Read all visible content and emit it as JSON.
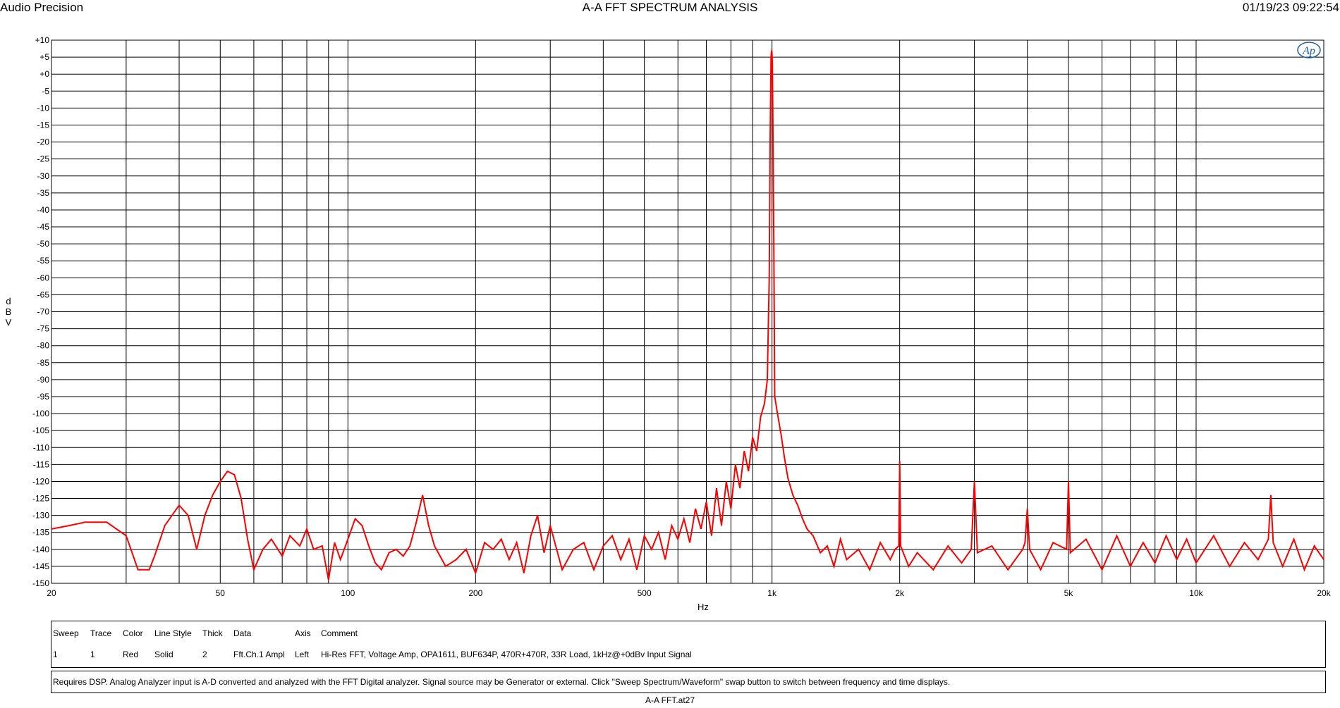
{
  "header": {
    "brand": "Audio Precision",
    "title": "A-A FFT SPECTRUM ANALYSIS",
    "datetime": "01/19/23 09:22:54"
  },
  "logo_text": "Ap",
  "chart_data": {
    "type": "line",
    "title": "A-A FFT SPECTRUM ANALYSIS",
    "xlabel": "Hz",
    "ylabel": "dBV",
    "xscale": "log",
    "xlim": [
      20,
      20000
    ],
    "ylim": [
      -150,
      10
    ],
    "grid": true,
    "x_tick_labels": [
      {
        "v": 20,
        "t": "20"
      },
      {
        "v": 50,
        "t": "50"
      },
      {
        "v": 100,
        "t": "100"
      },
      {
        "v": 200,
        "t": "200"
      },
      {
        "v": 500,
        "t": "500"
      },
      {
        "v": 1000,
        "t": "1k"
      },
      {
        "v": 2000,
        "t": "2k"
      },
      {
        "v": 5000,
        "t": "5k"
      },
      {
        "v": 10000,
        "t": "10k"
      },
      {
        "v": 20000,
        "t": "20k"
      }
    ],
    "y_tick_labels": [
      "+10",
      "+5",
      "+0",
      "-5",
      "-10",
      "-15",
      "-20",
      "-25",
      "-30",
      "-35",
      "-40",
      "-45",
      "-50",
      "-55",
      "-60",
      "-65",
      "-70",
      "-75",
      "-80",
      "-85",
      "-90",
      "-95",
      "-100",
      "-105",
      "-110",
      "-115",
      "-120",
      "-125",
      "-130",
      "-135",
      "-140",
      "-145",
      "-150"
    ],
    "series": [
      {
        "color": "#ff0000",
        "points": [
          [
            20,
            -134
          ],
          [
            22,
            -133
          ],
          [
            24,
            -132
          ],
          [
            27,
            -132
          ],
          [
            30,
            -136
          ],
          [
            32,
            -146
          ],
          [
            34,
            -146
          ],
          [
            35,
            -142
          ],
          [
            37,
            -133
          ],
          [
            40,
            -127
          ],
          [
            42,
            -130
          ],
          [
            44,
            -140
          ],
          [
            46,
            -130
          ],
          [
            48,
            -124
          ],
          [
            50,
            -120
          ],
          [
            52,
            -117
          ],
          [
            54,
            -118
          ],
          [
            56,
            -125
          ],
          [
            58,
            -137
          ],
          [
            60,
            -146
          ],
          [
            63,
            -140
          ],
          [
            66,
            -137
          ],
          [
            70,
            -142
          ],
          [
            73,
            -136
          ],
          [
            77,
            -139
          ],
          [
            80,
            -134
          ],
          [
            83,
            -140
          ],
          [
            87,
            -139
          ],
          [
            90,
            -149
          ],
          [
            93,
            -138
          ],
          [
            96,
            -143
          ],
          [
            100,
            -137
          ],
          [
            104,
            -131
          ],
          [
            108,
            -133
          ],
          [
            112,
            -139
          ],
          [
            116,
            -144
          ],
          [
            120,
            -146
          ],
          [
            125,
            -141
          ],
          [
            130,
            -140
          ],
          [
            135,
            -142
          ],
          [
            140,
            -139
          ],
          [
            145,
            -132
          ],
          [
            150,
            -124
          ],
          [
            155,
            -133
          ],
          [
            160,
            -139
          ],
          [
            170,
            -145
          ],
          [
            180,
            -143
          ],
          [
            190,
            -140
          ],
          [
            200,
            -147
          ],
          [
            210,
            -138
          ],
          [
            220,
            -140
          ],
          [
            230,
            -137
          ],
          [
            240,
            -143
          ],
          [
            250,
            -138
          ],
          [
            260,
            -147
          ],
          [
            270,
            -136
          ],
          [
            280,
            -130
          ],
          [
            290,
            -141
          ],
          [
            300,
            -133
          ],
          [
            320,
            -146
          ],
          [
            340,
            -140
          ],
          [
            360,
            -138
          ],
          [
            380,
            -146
          ],
          [
            400,
            -139
          ],
          [
            420,
            -136
          ],
          [
            440,
            -143
          ],
          [
            460,
            -137
          ],
          [
            480,
            -146
          ],
          [
            500,
            -136
          ],
          [
            520,
            -140
          ],
          [
            540,
            -135
          ],
          [
            560,
            -143
          ],
          [
            580,
            -133
          ],
          [
            600,
            -137
          ],
          [
            620,
            -131
          ],
          [
            640,
            -138
          ],
          [
            660,
            -128
          ],
          [
            680,
            -134
          ],
          [
            700,
            -126
          ],
          [
            720,
            -136
          ],
          [
            740,
            -122
          ],
          [
            760,
            -133
          ],
          [
            780,
            -120
          ],
          [
            800,
            -128
          ],
          [
            820,
            -115
          ],
          [
            840,
            -122
          ],
          [
            860,
            -111
          ],
          [
            880,
            -117
          ],
          [
            900,
            -107
          ],
          [
            920,
            -111
          ],
          [
            940,
            -101
          ],
          [
            960,
            -97
          ],
          [
            975,
            -90
          ],
          [
            985,
            -60
          ],
          [
            990,
            -20
          ],
          [
            995,
            5
          ],
          [
            998,
            7
          ],
          [
            1000,
            6
          ],
          [
            1002,
            3
          ],
          [
            1005,
            -15
          ],
          [
            1010,
            -50
          ],
          [
            1015,
            -95
          ],
          [
            1030,
            -100
          ],
          [
            1050,
            -106
          ],
          [
            1070,
            -113
          ],
          [
            1090,
            -119
          ],
          [
            1120,
            -124
          ],
          [
            1150,
            -127
          ],
          [
            1180,
            -131
          ],
          [
            1210,
            -134
          ],
          [
            1250,
            -136
          ],
          [
            1300,
            -141
          ],
          [
            1350,
            -139
          ],
          [
            1400,
            -145
          ],
          [
            1450,
            -137
          ],
          [
            1500,
            -143
          ],
          [
            1600,
            -140
          ],
          [
            1700,
            -146
          ],
          [
            1800,
            -138
          ],
          [
            1900,
            -143
          ],
          [
            1950,
            -140
          ],
          [
            1990,
            -139
          ],
          [
            2000,
            -114
          ],
          [
            2010,
            -139
          ],
          [
            2100,
            -145
          ],
          [
            2200,
            -141
          ],
          [
            2400,
            -146
          ],
          [
            2600,
            -139
          ],
          [
            2800,
            -144
          ],
          [
            2950,
            -140
          ],
          [
            3000,
            -120
          ],
          [
            3050,
            -141
          ],
          [
            3300,
            -139
          ],
          [
            3600,
            -146
          ],
          [
            3900,
            -140
          ],
          [
            3950,
            -138
          ],
          [
            4000,
            -128
          ],
          [
            4050,
            -140
          ],
          [
            4300,
            -146
          ],
          [
            4600,
            -138
          ],
          [
            4950,
            -140
          ],
          [
            5000,
            -120
          ],
          [
            5050,
            -141
          ],
          [
            5500,
            -137
          ],
          [
            6000,
            -146
          ],
          [
            6500,
            -136
          ],
          [
            7000,
            -145
          ],
          [
            7500,
            -138
          ],
          [
            8000,
            -144
          ],
          [
            8500,
            -136
          ],
          [
            9000,
            -143
          ],
          [
            9500,
            -137
          ],
          [
            10000,
            -144
          ],
          [
            11000,
            -136
          ],
          [
            12000,
            -145
          ],
          [
            13000,
            -138
          ],
          [
            14000,
            -143
          ],
          [
            14800,
            -137
          ],
          [
            15000,
            -124
          ],
          [
            15200,
            -138
          ],
          [
            16000,
            -145
          ],
          [
            17000,
            -137
          ],
          [
            18000,
            -146
          ],
          [
            19000,
            -139
          ],
          [
            20000,
            -143
          ]
        ]
      }
    ]
  },
  "legend": {
    "headers": [
      "Sweep",
      "Trace",
      "Color",
      "Line Style",
      "Thick",
      "Data",
      "Axis",
      "Comment"
    ],
    "rows": [
      [
        "1",
        "1",
        "Red",
        "Solid",
        "2",
        "Fft.Ch.1 Ampl",
        "Left",
        "Hi-Res FFT, Voltage Amp, OPA1611, BUF634P, 470R+470R, 33R Load, 1kHz@+0dBv Input Signal"
      ]
    ],
    "note": "Requires DSP.  Analog Analyzer input is A-D converted and analyzed with the FFT Digital analyzer.  Signal source may be Generator or external.  Click \"Sweep Spectrum/Waveform\" swap button to switch between frequency and time displays."
  },
  "footer": "A-A FFT.at27"
}
